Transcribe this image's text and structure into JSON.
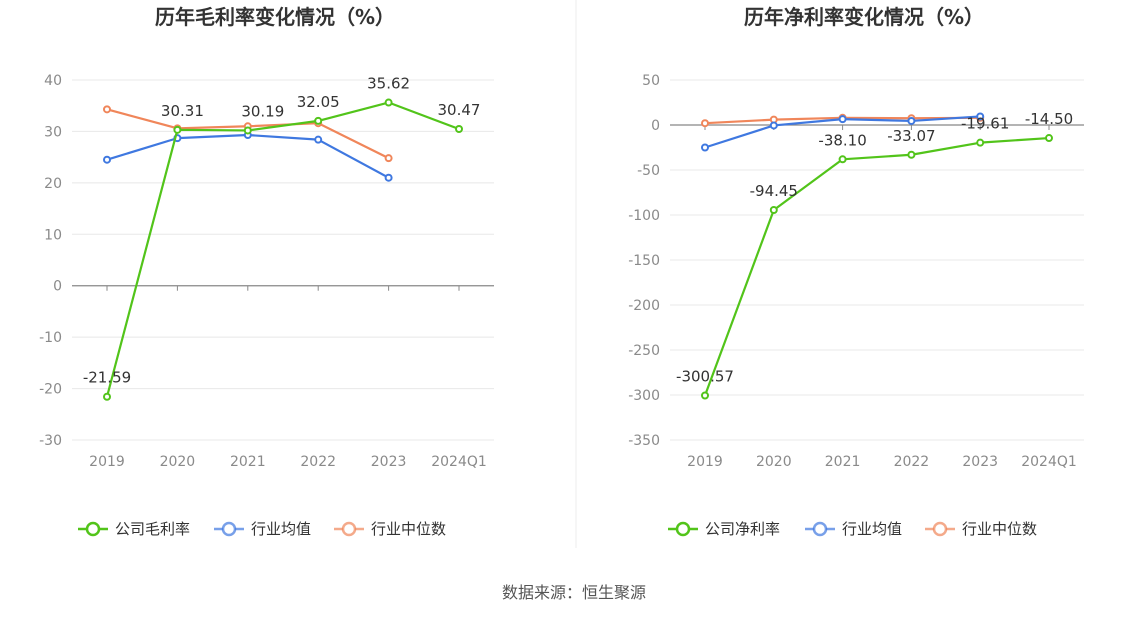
{
  "source": "数据来源：恒生聚源",
  "chart_data": [
    {
      "type": "line",
      "title": "历年毛利率变化情况（%）",
      "categories": [
        "2019",
        "2020",
        "2021",
        "2022",
        "2023",
        "2024Q1"
      ],
      "ylim": [
        -30,
        40
      ],
      "yticks": [
        40,
        30,
        20,
        10,
        0,
        -10,
        -20,
        -30
      ],
      "grid": true,
      "legend_position": "bottom",
      "series": [
        {
          "name": "公司毛利率",
          "color": "#52c41a",
          "values": [
            -21.59,
            30.31,
            30.19,
            32.05,
            35.62,
            30.47
          ],
          "labels": [
            "-21.59",
            "30.31",
            "30.19",
            "32.05",
            "35.62",
            "30.47"
          ]
        },
        {
          "name": "行业均值",
          "color": "#3f78e0",
          "values": [
            24.5,
            28.7,
            29.3,
            28.4,
            21.0,
            null
          ]
        },
        {
          "name": "行业中位数",
          "color": "#f0865a",
          "values": [
            34.3,
            30.6,
            31.0,
            31.6,
            24.8,
            null
          ]
        }
      ]
    },
    {
      "type": "line",
      "title": "历年净利率变化情况（%）",
      "categories": [
        "2019",
        "2020",
        "2021",
        "2022",
        "2023",
        "2024Q1"
      ],
      "ylim": [
        -350,
        50
      ],
      "yticks": [
        50,
        0,
        -50,
        -100,
        -150,
        -200,
        -250,
        -300,
        -350
      ],
      "grid": true,
      "legend_position": "bottom",
      "series": [
        {
          "name": "公司净利率",
          "color": "#52c41a",
          "values": [
            -300.57,
            -94.45,
            -38.1,
            -33.07,
            -19.61,
            -14.5
          ],
          "labels": [
            "-300.57",
            "-94.45",
            "-38.10",
            "-33.07",
            "-19.61",
            "-14.50"
          ]
        },
        {
          "name": "行业均值",
          "color": "#3f78e0",
          "values": [
            -25.0,
            -0.5,
            6.5,
            4.5,
            9.5,
            null
          ]
        },
        {
          "name": "行业中位数",
          "color": "#f0865a",
          "values": [
            2.0,
            6.0,
            8.0,
            7.5,
            8.0,
            null
          ]
        }
      ]
    }
  ]
}
